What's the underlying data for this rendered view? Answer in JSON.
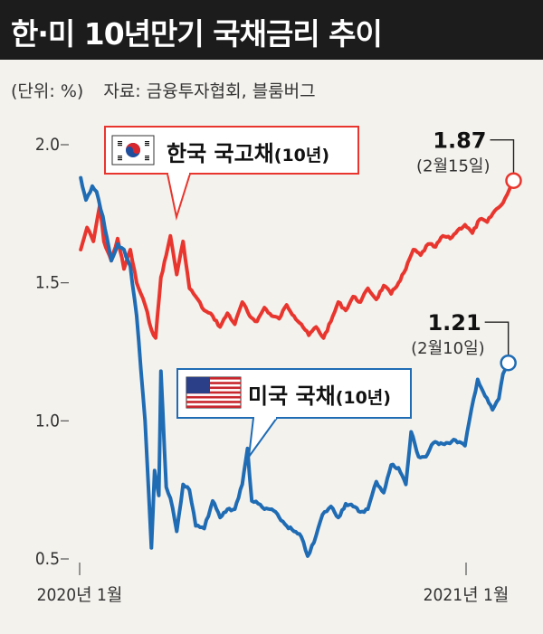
{
  "title": "한·미 10년만기 국채금리 추이",
  "unit_note": "(단위: %)",
  "source_note": "자료: 금융투자협회, 블룸버그",
  "chart_data": {
    "type": "line",
    "ylim": [
      0.5,
      2.0
    ],
    "yticks": [
      {
        "value": 2.0,
        "label": "2.0"
      },
      {
        "value": 1.5,
        "label": "1.5"
      },
      {
        "value": 1.0,
        "label": "1.0"
      },
      {
        "value": 0.5,
        "label": "0.5"
      }
    ],
    "xlim": [
      "2020-01-01",
      "2021-02-20"
    ],
    "xticks": [
      {
        "date": "2020-01-01",
        "label": "2020년 1월"
      },
      {
        "date": "2021-01-01",
        "label": "2021년 1월"
      }
    ],
    "series": [
      {
        "name": "한국 국고채(10년)",
        "label_main": "한국 국고채",
        "label_sub": "(10년)",
        "flag_icon": "korea-flag-icon",
        "color": "#e8362e",
        "points": [
          [
            "2020-01-02",
            1.62
          ],
          [
            "2020-01-08",
            1.7
          ],
          [
            "2020-01-14",
            1.65
          ],
          [
            "2020-01-20",
            1.78
          ],
          [
            "2020-01-24",
            1.65
          ],
          [
            "2020-01-31",
            1.58
          ],
          [
            "2020-02-06",
            1.66
          ],
          [
            "2020-02-12",
            1.55
          ],
          [
            "2020-02-18",
            1.62
          ],
          [
            "2020-02-24",
            1.5
          ],
          [
            "2020-03-03",
            1.42
          ],
          [
            "2020-03-09",
            1.33
          ],
          [
            "2020-03-13",
            1.3
          ],
          [
            "2020-03-18",
            1.52
          ],
          [
            "2020-03-23",
            1.6
          ],
          [
            "2020-03-27",
            1.67
          ],
          [
            "2020-04-02",
            1.53
          ],
          [
            "2020-04-08",
            1.65
          ],
          [
            "2020-04-14",
            1.48
          ],
          [
            "2020-04-20",
            1.45
          ],
          [
            "2020-04-28",
            1.4
          ],
          [
            "2020-05-06",
            1.38
          ],
          [
            "2020-05-13",
            1.34
          ],
          [
            "2020-05-20",
            1.39
          ],
          [
            "2020-05-27",
            1.35
          ],
          [
            "2020-06-03",
            1.43
          ],
          [
            "2020-06-10",
            1.38
          ],
          [
            "2020-06-17",
            1.36
          ],
          [
            "2020-06-24",
            1.41
          ],
          [
            "2020-07-01",
            1.38
          ],
          [
            "2020-07-08",
            1.37
          ],
          [
            "2020-07-15",
            1.42
          ],
          [
            "2020-07-22",
            1.38
          ],
          [
            "2020-07-29",
            1.35
          ],
          [
            "2020-08-05",
            1.31
          ],
          [
            "2020-08-12",
            1.34
          ],
          [
            "2020-08-19",
            1.3
          ],
          [
            "2020-08-26",
            1.36
          ],
          [
            "2020-09-02",
            1.43
          ],
          [
            "2020-09-09",
            1.4
          ],
          [
            "2020-09-16",
            1.45
          ],
          [
            "2020-09-23",
            1.43
          ],
          [
            "2020-09-30",
            1.48
          ],
          [
            "2020-10-08",
            1.44
          ],
          [
            "2020-10-15",
            1.49
          ],
          [
            "2020-10-22",
            1.46
          ],
          [
            "2020-10-29",
            1.5
          ],
          [
            "2020-11-05",
            1.55
          ],
          [
            "2020-11-12",
            1.62
          ],
          [
            "2020-11-19",
            1.6
          ],
          [
            "2020-11-26",
            1.64
          ],
          [
            "2020-12-03",
            1.63
          ],
          [
            "2020-12-10",
            1.67
          ],
          [
            "2020-12-17",
            1.66
          ],
          [
            "2020-12-24",
            1.69
          ],
          [
            "2020-12-31",
            1.71
          ],
          [
            "2021-01-07",
            1.68
          ],
          [
            "2021-01-14",
            1.73
          ],
          [
            "2021-01-21",
            1.72
          ],
          [
            "2021-01-28",
            1.76
          ],
          [
            "2021-02-03",
            1.78
          ],
          [
            "2021-02-09",
            1.82
          ],
          [
            "2021-02-15",
            1.87
          ]
        ],
        "callout": {
          "value": "1.87",
          "date": "(2월15일)"
        }
      },
      {
        "name": "미국 국채(10년)",
        "label_main": "미국 국채",
        "label_sub": "(10년)",
        "flag_icon": "usa-flag-icon",
        "color": "#1f6cb4",
        "points": [
          [
            "2020-01-02",
            1.88
          ],
          [
            "2020-01-07",
            1.8
          ],
          [
            "2020-01-13",
            1.85
          ],
          [
            "2020-01-17",
            1.83
          ],
          [
            "2020-01-23",
            1.74
          ],
          [
            "2020-01-31",
            1.58
          ],
          [
            "2020-02-06",
            1.64
          ],
          [
            "2020-02-12",
            1.62
          ],
          [
            "2020-02-18",
            1.56
          ],
          [
            "2020-02-24",
            1.38
          ],
          [
            "2020-03-03",
            1.0
          ],
          [
            "2020-03-09",
            0.54
          ],
          [
            "2020-03-12",
            0.82
          ],
          [
            "2020-03-16",
            0.73
          ],
          [
            "2020-03-18",
            1.18
          ],
          [
            "2020-03-23",
            0.76
          ],
          [
            "2020-03-27",
            0.72
          ],
          [
            "2020-04-02",
            0.6
          ],
          [
            "2020-04-08",
            0.77
          ],
          [
            "2020-04-14",
            0.75
          ],
          [
            "2020-04-20",
            0.62
          ],
          [
            "2020-04-28",
            0.61
          ],
          [
            "2020-05-06",
            0.71
          ],
          [
            "2020-05-13",
            0.65
          ],
          [
            "2020-05-20",
            0.68
          ],
          [
            "2020-05-27",
            0.68
          ],
          [
            "2020-06-03",
            0.77
          ],
          [
            "2020-06-08",
            0.9
          ],
          [
            "2020-06-12",
            0.71
          ],
          [
            "2020-06-18",
            0.7
          ],
          [
            "2020-06-24",
            0.68
          ],
          [
            "2020-07-01",
            0.68
          ],
          [
            "2020-07-08",
            0.65
          ],
          [
            "2020-07-15",
            0.62
          ],
          [
            "2020-07-22",
            0.6
          ],
          [
            "2020-07-29",
            0.58
          ],
          [
            "2020-08-04",
            0.51
          ],
          [
            "2020-08-10",
            0.56
          ],
          [
            "2020-08-18",
            0.66
          ],
          [
            "2020-08-26",
            0.69
          ],
          [
            "2020-09-02",
            0.65
          ],
          [
            "2020-09-09",
            0.7
          ],
          [
            "2020-09-16",
            0.69
          ],
          [
            "2020-09-23",
            0.67
          ],
          [
            "2020-09-30",
            0.68
          ],
          [
            "2020-10-08",
            0.78
          ],
          [
            "2020-10-15",
            0.74
          ],
          [
            "2020-10-22",
            0.84
          ],
          [
            "2020-10-29",
            0.83
          ],
          [
            "2020-11-05",
            0.77
          ],
          [
            "2020-11-10",
            0.96
          ],
          [
            "2020-11-17",
            0.87
          ],
          [
            "2020-11-24",
            0.87
          ],
          [
            "2020-12-01",
            0.92
          ],
          [
            "2020-12-08",
            0.92
          ],
          [
            "2020-12-15",
            0.92
          ],
          [
            "2020-12-22",
            0.93
          ],
          [
            "2020-12-31",
            0.91
          ],
          [
            "2021-01-06",
            1.04
          ],
          [
            "2021-01-12",
            1.15
          ],
          [
            "2021-01-19",
            1.09
          ],
          [
            "2021-01-26",
            1.04
          ],
          [
            "2021-02-01",
            1.08
          ],
          [
            "2021-02-05",
            1.17
          ],
          [
            "2021-02-10",
            1.21
          ]
        ],
        "callout": {
          "value": "1.21",
          "date": "(2월10일)"
        }
      }
    ]
  }
}
